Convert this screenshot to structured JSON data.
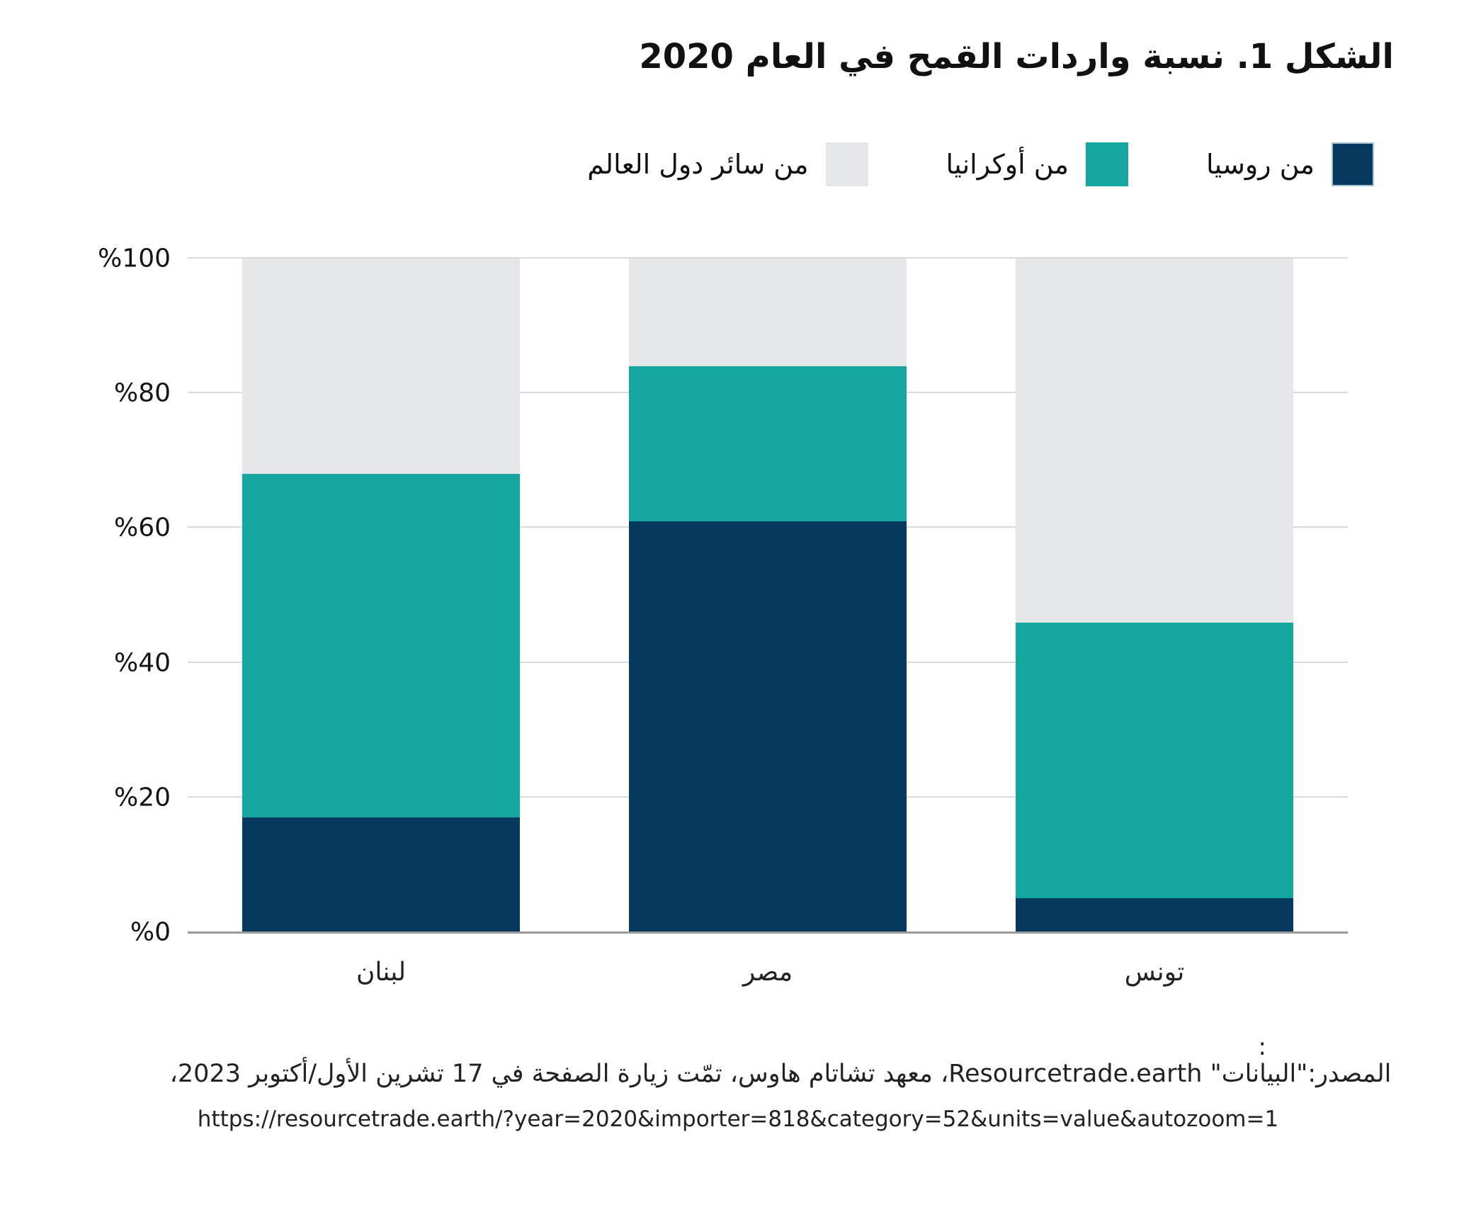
{
  "chart_data": {
    "type": "bar",
    "stacked": true,
    "title": "الشكل 1. نسبة واردات القمح في العام 2020",
    "categories": [
      "لبنان",
      "مصر",
      "تونس"
    ],
    "series": [
      {
        "name": "من روسيا",
        "color": "#053A5E",
        "swatch_border": "#A9C3D6",
        "values": [
          17,
          61,
          5
        ]
      },
      {
        "name": "من أوكرانيا",
        "color": "#15A79F",
        "swatch_border": "",
        "values": [
          51,
          23,
          41
        ]
      },
      {
        "name": "من سائر دول العالم",
        "color": "#E6E7E8",
        "swatch_border": "",
        "values": [
          32,
          16,
          54
        ]
      }
    ],
    "ylim": [
      0,
      100
    ],
    "yticks": [
      {
        "value": 0,
        "label": "%0"
      },
      {
        "value": 20,
        "label": "%20"
      },
      {
        "value": 40,
        "label": "%40"
      },
      {
        "value": 60,
        "label": "%60"
      },
      {
        "value": 80,
        "label": "%80"
      },
      {
        "value": 100,
        "label": "%100"
      }
    ],
    "grid": true,
    "legend_position": "top-right",
    "grid_color": "#D9DADC",
    "axis_color": "#9B9B9B"
  },
  "footer": {
    "colon": ":",
    "source": "المصدر:\"البيانات\" Resourcetrade.earth، معهد تشاتام هاوس، تمّت زيارة الصفحة في 17 تشرين الأول/أكتوبر 2023،",
    "url": "https://resourcetrade.earth/?year=2020&importer=818&category=52&units=value&autozoom=1"
  }
}
